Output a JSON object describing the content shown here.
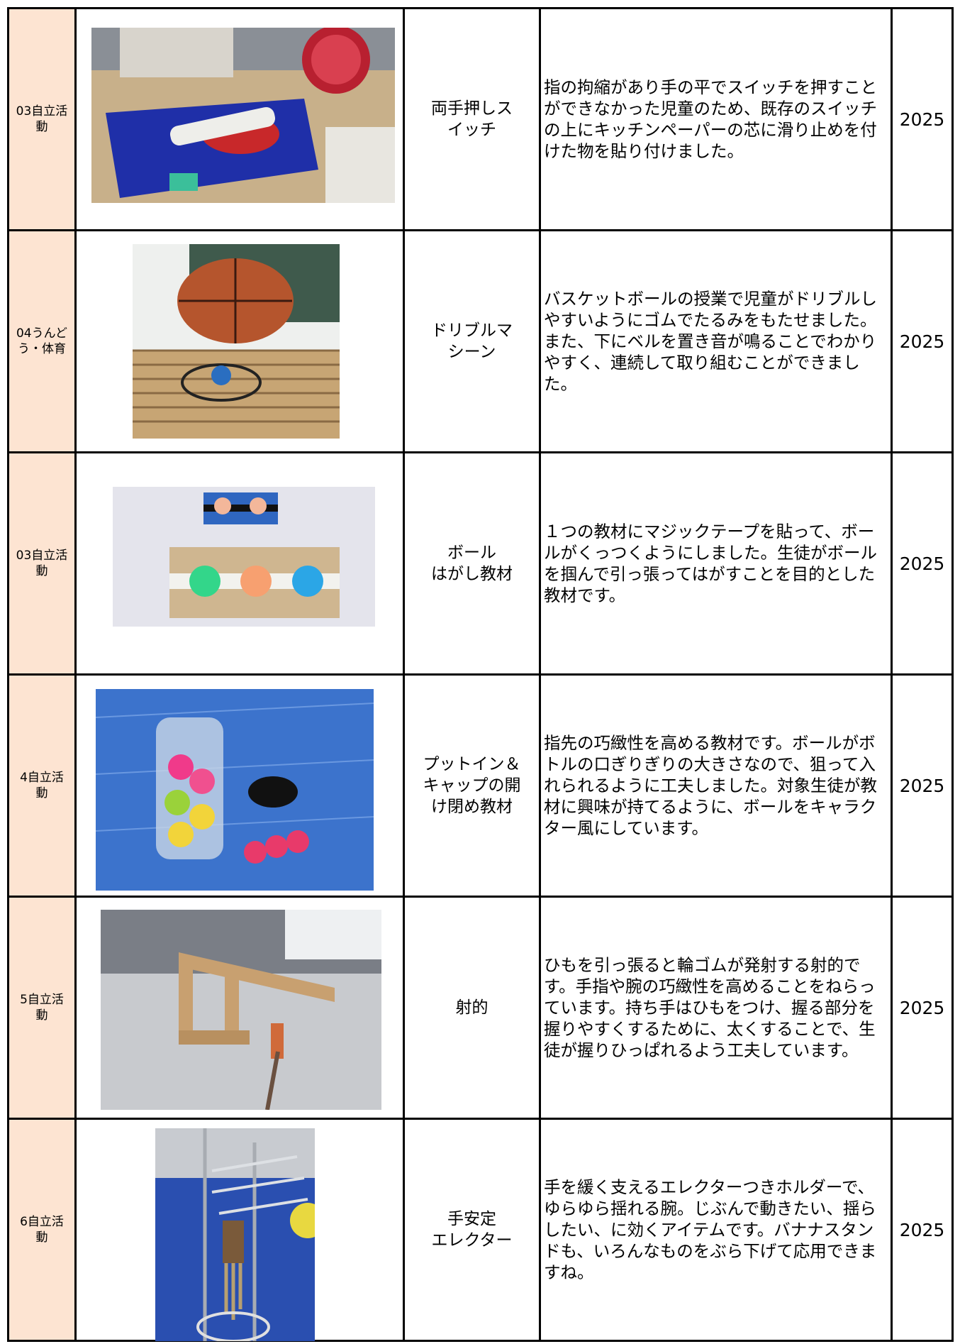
{
  "rows": [
    {
      "category": "03自立活\n動",
      "title": "両手押しス\nイッチ",
      "description": "指の拘縮があり手の平でスイッチを押すことができなかった児童のため、既存のスイッチの上にキッチンペーパーの芯に滑り止めを付けた物を貼り付けました。",
      "year": 2025
    },
    {
      "category": "04うんど\nう・体育",
      "title": "ドリブルマ\nシーン",
      "description": "バスケットボールの授業で児童がドリブルしやすいようにゴムでたるみをもたせました。また、下にベルを置き音が鳴ることでわかりやすく、連続して取り組むことができました。",
      "year": 2025
    },
    {
      "category": "03自立活\n動",
      "title": "ボール\nはがし教材",
      "description": "１つの教材にマジックテープを貼って、ボールがくっつくようにしました。生徒がボールを掴んで引っ張ってはがすことを目的とした教材です。",
      "year": 2025
    },
    {
      "category": "4自立活\n動",
      "title": "プットイン＆\nキャップの開\nけ閉め教材",
      "description": "指先の巧緻性を高める教材です。ボールがボトルの口ぎりぎりの大きさなので、狙って入れられるように工夫しました。対象生徒が教材に興味が持てるように、ボールをキャラクター風にしています。",
      "year": 2025
    },
    {
      "category": "5自立活\n動",
      "title": "射的",
      "description": "ひもを引っ張ると輪ゴムが発射する射的です。手指や腕の巧緻性を高めることをねらっています。持ち手はひもをつけ、握る部分を握りやすくするために、太くすることで、生徒が握りひっぱれるよう工夫しています。",
      "year": 2025
    },
    {
      "category": "6自立活\n動",
      "title": "手安定\nエレクター",
      "description": "手を緩く支えるエレクターつきホルダーで、ゆらゆら揺れる腕。じぶんで動きたい、揺らしたい、に効くアイテムです。バナナスタンドも、いろんなものをぶら下げて応用できますね。",
      "year": 2025
    }
  ]
}
